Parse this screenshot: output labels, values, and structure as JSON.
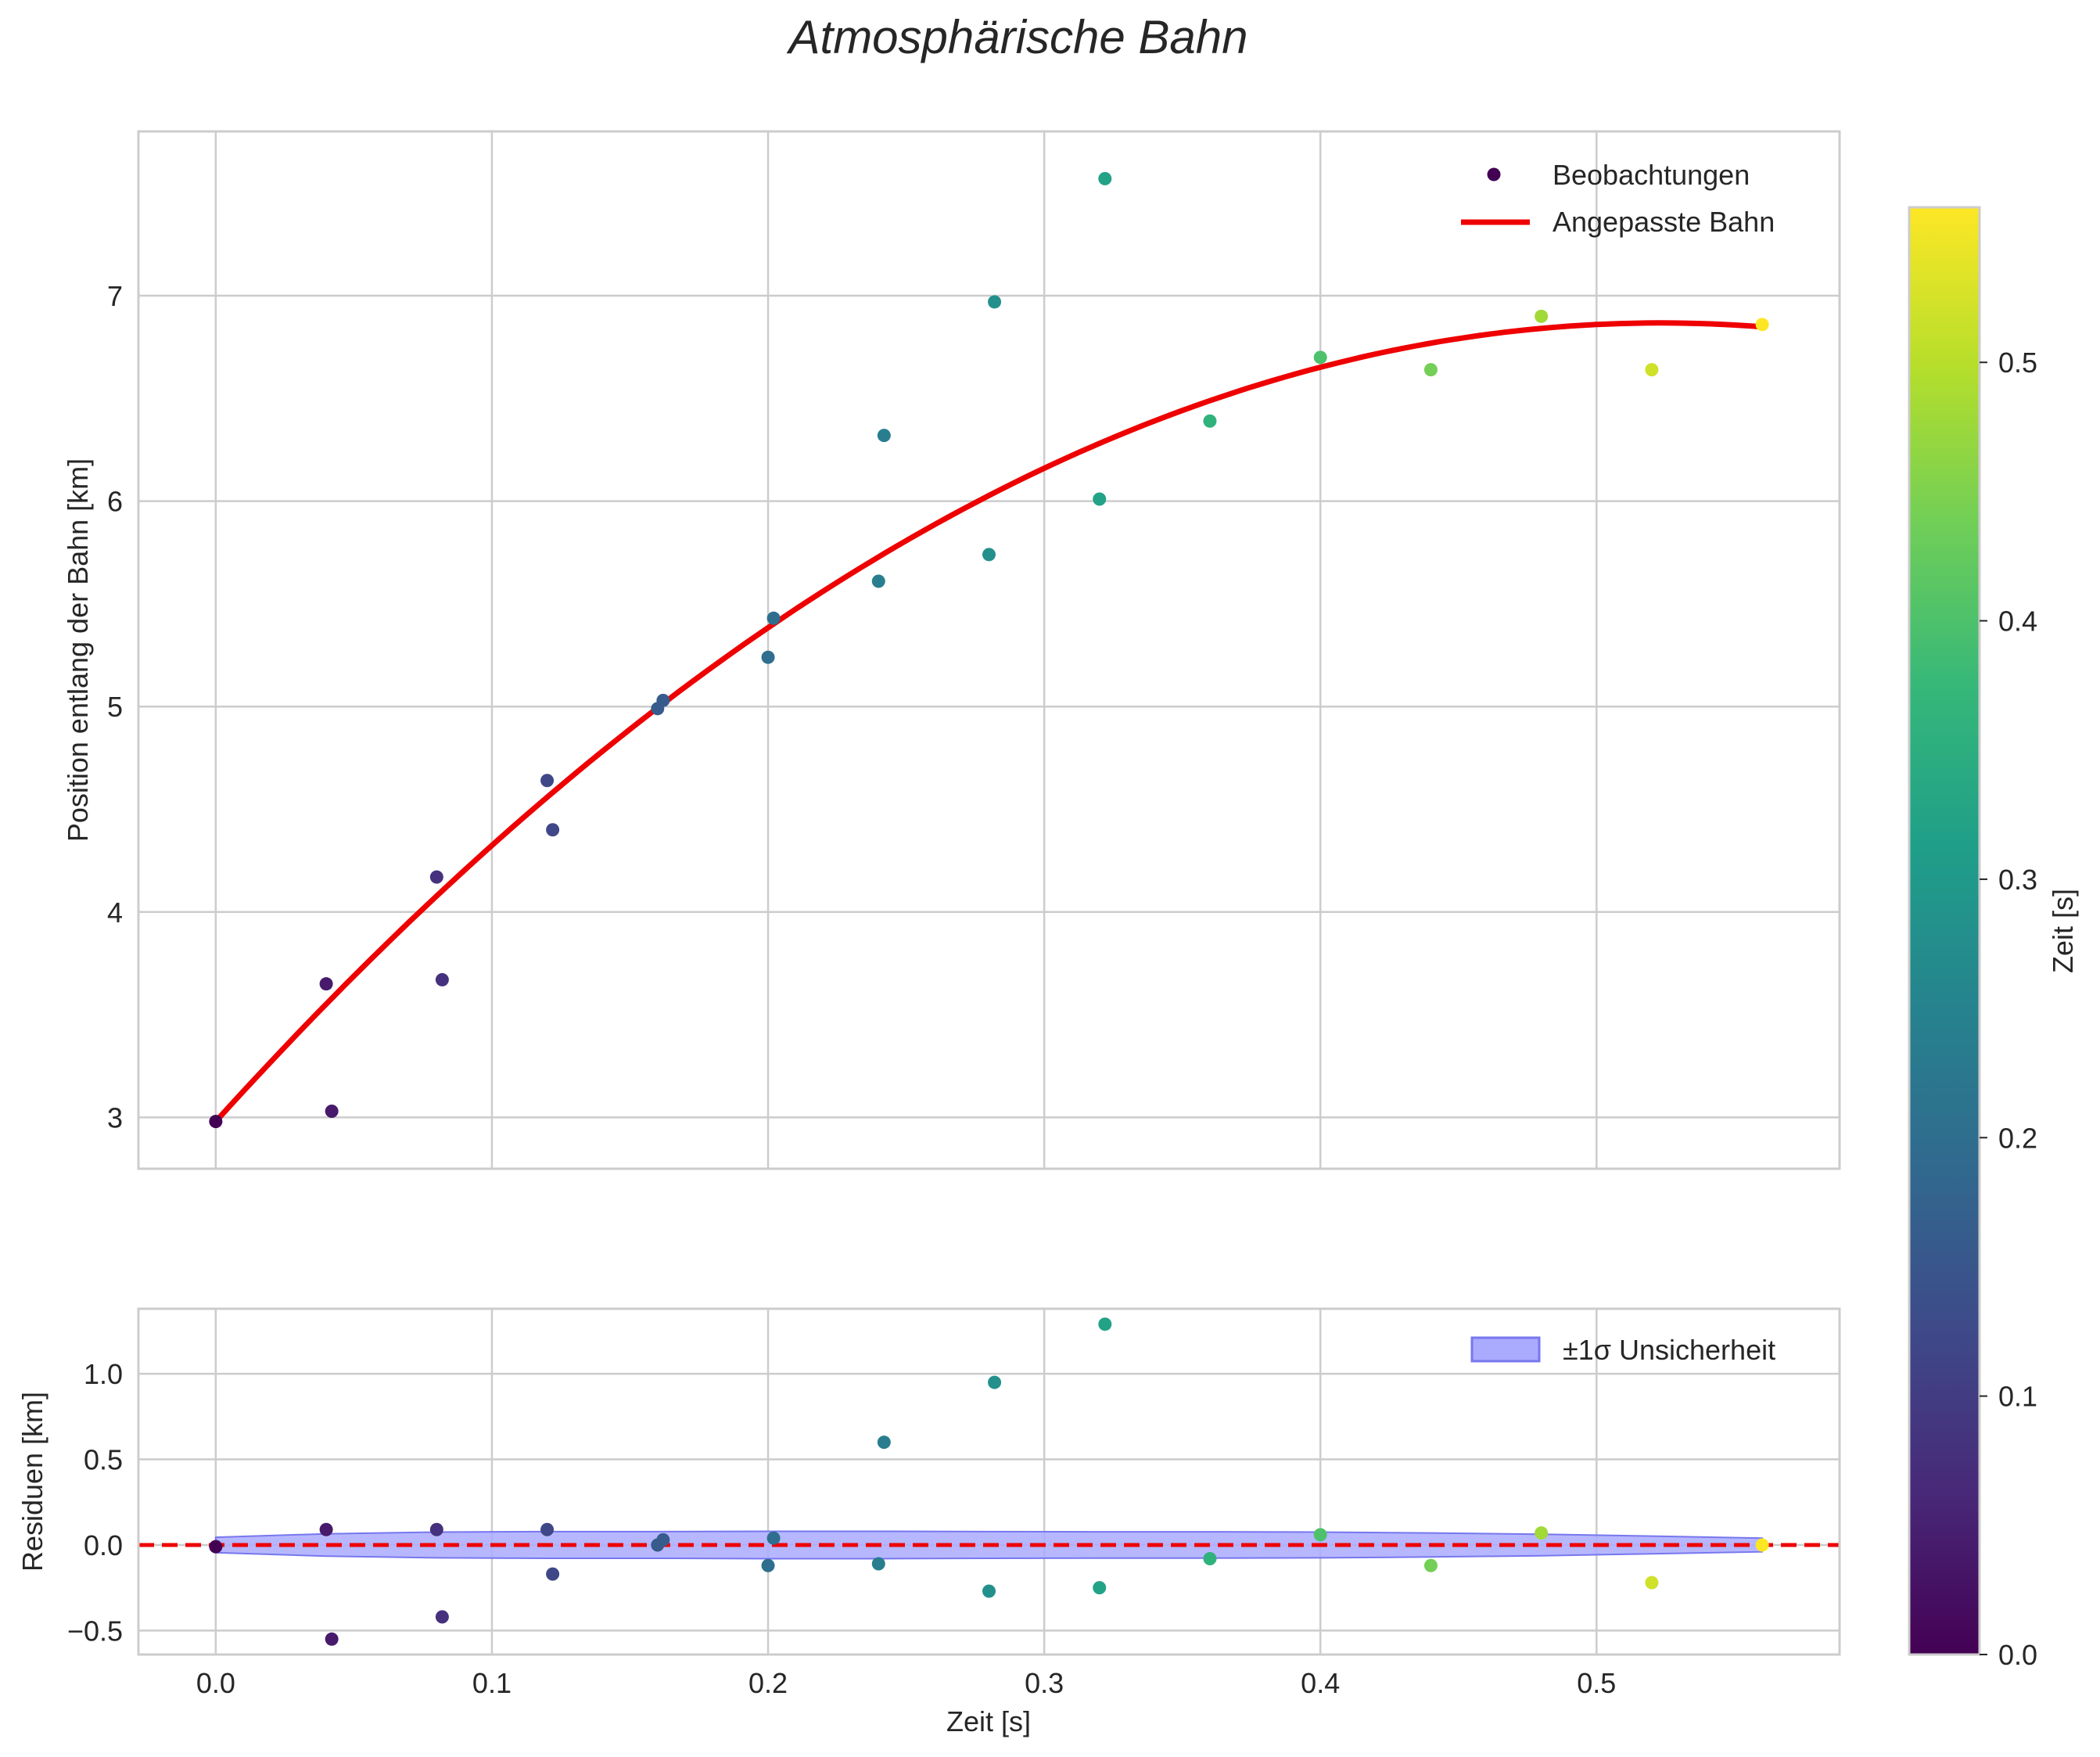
{
  "title": "Atmosphärische Bahn",
  "colors": {
    "fit": "#ee0000",
    "band_fill": "#aaaaff",
    "band_edge": "#7777ee",
    "grid": "#cccccc",
    "spine": "#cccccc",
    "text": "#262626",
    "zero_line": "#ee0000"
  },
  "colorbar": {
    "label": "Zeit [s]",
    "range": [
      0,
      0.56
    ],
    "ticks": [
      "0.0",
      "0.1",
      "0.2",
      "0.3",
      "0.4",
      "0.5"
    ],
    "colormap": "viridis"
  },
  "chart_data": [
    {
      "type": "scatter",
      "panel": "top",
      "title": "Atmosphärische Bahn",
      "xlabel": "",
      "ylabel": "Position entlang der Bahn [km]",
      "xlim": [
        -0.028,
        0.588
      ],
      "ylim": [
        2.75,
        7.8
      ],
      "xticks": [
        0.0,
        0.1,
        0.2,
        0.3,
        0.4,
        0.5
      ],
      "yticks": [
        3,
        4,
        5,
        6,
        7
      ],
      "ytick_labels": [
        "3",
        "4",
        "5",
        "6",
        "7"
      ],
      "grid": true,
      "legend": {
        "placement": "top-right",
        "entries": [
          "Beobachtungen",
          "Angepasste Bahn"
        ]
      },
      "series": [
        {
          "name": "Beobachtungen",
          "kind": "scatter",
          "color_by": "time",
          "points": [
            {
              "t": 0.0,
              "x": 0.0,
              "y": 2.98
            },
            {
              "t": 0.04,
              "x": 0.04,
              "y": 3.65
            },
            {
              "t": 0.04,
              "x": 0.042,
              "y": 3.03
            },
            {
              "t": 0.08,
              "x": 0.08,
              "y": 4.17
            },
            {
              "t": 0.08,
              "x": 0.082,
              "y": 3.67
            },
            {
              "t": 0.12,
              "x": 0.12,
              "y": 4.64
            },
            {
              "t": 0.12,
              "x": 0.122,
              "y": 4.4
            },
            {
              "t": 0.16,
              "x": 0.16,
              "y": 4.99
            },
            {
              "t": 0.16,
              "x": 0.162,
              "y": 5.03
            },
            {
              "t": 0.2,
              "x": 0.2,
              "y": 5.24
            },
            {
              "t": 0.2,
              "x": 0.202,
              "y": 5.43
            },
            {
              "t": 0.24,
              "x": 0.24,
              "y": 5.61
            },
            {
              "t": 0.24,
              "x": 0.242,
              "y": 6.32
            },
            {
              "t": 0.28,
              "x": 0.28,
              "y": 5.74
            },
            {
              "t": 0.28,
              "x": 0.282,
              "y": 6.97
            },
            {
              "t": 0.32,
              "x": 0.32,
              "y": 6.01
            },
            {
              "t": 0.32,
              "x": 0.322,
              "y": 7.57
            },
            {
              "t": 0.36,
              "x": 0.36,
              "y": 6.39
            },
            {
              "t": 0.4,
              "x": 0.4,
              "y": 6.7
            },
            {
              "t": 0.44,
              "x": 0.44,
              "y": 6.64
            },
            {
              "t": 0.48,
              "x": 0.48,
              "y": 6.9
            },
            {
              "t": 0.52,
              "x": 0.52,
              "y": 6.64
            },
            {
              "t": 0.56,
              "x": 0.56,
              "y": 6.86
            }
          ]
        },
        {
          "name": "Angepasste Bahn",
          "kind": "line",
          "model": "y = 2.98 + 14.86 t - 14.2 t^2",
          "coefficients": [
            2.98,
            14.86,
            -14.2
          ],
          "x_range": [
            0.0,
            0.56
          ]
        }
      ]
    },
    {
      "type": "scatter",
      "panel": "bottom",
      "xlabel": "Zeit [s]",
      "ylabel": "Residuen [km]",
      "xlim": [
        -0.028,
        0.588
      ],
      "ylim": [
        -0.64,
        1.38
      ],
      "xticks": [
        0.0,
        0.1,
        0.2,
        0.3,
        0.4,
        0.5
      ],
      "xtick_labels": [
        "0.0",
        "0.1",
        "0.2",
        "0.3",
        "0.4",
        "0.5"
      ],
      "yticks": [
        -0.5,
        0.0,
        0.5,
        1.0
      ],
      "ytick_labels": [
        "−0.5",
        "0.0",
        "0.5",
        "1.0"
      ],
      "grid": true,
      "zero_line": 0.0,
      "legend": {
        "placement": "top-right",
        "entries": [
          "±1σ Unsicherheit"
        ]
      },
      "band": {
        "name": "±1σ Unsicherheit",
        "x": [
          0.0,
          0.04,
          0.08,
          0.12,
          0.16,
          0.2,
          0.24,
          0.28,
          0.32,
          0.36,
          0.4,
          0.44,
          0.48,
          0.52,
          0.56
        ],
        "half_width": [
          0.045,
          0.065,
          0.075,
          0.078,
          0.078,
          0.08,
          0.08,
          0.078,
          0.077,
          0.077,
          0.075,
          0.07,
          0.063,
          0.052,
          0.04
        ]
      },
      "residuals": [
        {
          "t": 0.0,
          "x": 0.0,
          "y": -0.01
        },
        {
          "t": 0.04,
          "x": 0.04,
          "y": 0.09
        },
        {
          "t": 0.04,
          "x": 0.042,
          "y": -0.55
        },
        {
          "t": 0.08,
          "x": 0.08,
          "y": 0.09
        },
        {
          "t": 0.08,
          "x": 0.082,
          "y": -0.42
        },
        {
          "t": 0.12,
          "x": 0.12,
          "y": 0.09
        },
        {
          "t": 0.12,
          "x": 0.122,
          "y": -0.17
        },
        {
          "t": 0.16,
          "x": 0.16,
          "y": 0.0
        },
        {
          "t": 0.16,
          "x": 0.162,
          "y": 0.03
        },
        {
          "t": 0.2,
          "x": 0.2,
          "y": -0.12
        },
        {
          "t": 0.2,
          "x": 0.202,
          "y": 0.04
        },
        {
          "t": 0.24,
          "x": 0.24,
          "y": -0.11
        },
        {
          "t": 0.24,
          "x": 0.242,
          "y": 0.6
        },
        {
          "t": 0.28,
          "x": 0.28,
          "y": -0.27
        },
        {
          "t": 0.28,
          "x": 0.282,
          "y": 0.95
        },
        {
          "t": 0.32,
          "x": 0.32,
          "y": -0.25
        },
        {
          "t": 0.32,
          "x": 0.322,
          "y": 1.29
        },
        {
          "t": 0.36,
          "x": 0.36,
          "y": -0.08
        },
        {
          "t": 0.4,
          "x": 0.4,
          "y": 0.06
        },
        {
          "t": 0.44,
          "x": 0.44,
          "y": -0.12
        },
        {
          "t": 0.48,
          "x": 0.48,
          "y": 0.07
        },
        {
          "t": 0.52,
          "x": 0.52,
          "y": -0.22
        },
        {
          "t": 0.56,
          "x": 0.56,
          "y": 0.0
        }
      ]
    }
  ]
}
